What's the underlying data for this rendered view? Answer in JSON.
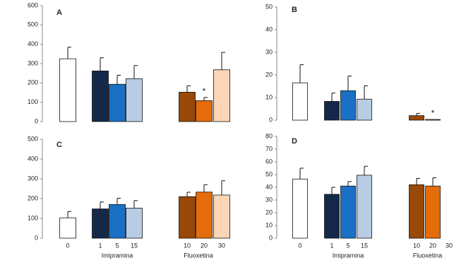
{
  "chart_data": [
    {
      "type": "bar",
      "label": "A",
      "categories": [
        null,
        null,
        null,
        null,
        null,
        null,
        null
      ],
      "values": [
        325,
        262,
        193,
        222,
        152,
        108,
        268
      ],
      "errors": [
        60,
        68,
        47,
        68,
        33,
        17,
        90
      ],
      "colors": [
        "#ffffff",
        "#14284a",
        "#1a70c4",
        "#b8cce4",
        "#984807",
        "#e46c0a",
        "#fbd5b5"
      ],
      "notes": [
        null,
        null,
        null,
        null,
        null,
        "*",
        null
      ],
      "ylim": [
        0,
        600
      ],
      "yticks": [
        0,
        100,
        200,
        300,
        400,
        500,
        600
      ]
    },
    {
      "type": "bar",
      "label": "B",
      "categories": [
        null,
        null,
        null,
        null,
        null,
        null,
        null
      ],
      "values": [
        16.5,
        8.3,
        13,
        9.3,
        2,
        0.3,
        null
      ],
      "errors": [
        8,
        3.7,
        6.5,
        5.9,
        1,
        null,
        null
      ],
      "colors": [
        "#ffffff",
        "#14284a",
        "#1a70c4",
        "#b8cce4",
        "#984807",
        "#e46c0a",
        "#fbd5b5"
      ],
      "notes": [
        null,
        null,
        null,
        null,
        null,
        "*",
        null
      ],
      "ylim": [
        0,
        50
      ],
      "yticks": [
        0,
        10,
        20,
        30,
        40,
        50
      ]
    },
    {
      "type": "bar",
      "label": "C",
      "categories": [
        "0",
        "1",
        "5",
        "15",
        "10",
        "20",
        "30"
      ],
      "group_labels": [
        "Imipramina",
        "Fluoxetina"
      ],
      "values": [
        103,
        148,
        170,
        152,
        210,
        233,
        218
      ],
      "errors": [
        32,
        35,
        32,
        38,
        22,
        37,
        72
      ],
      "colors": [
        "#ffffff",
        "#14284a",
        "#1a70c4",
        "#b8cce4",
        "#984807",
        "#e46c0a",
        "#fbd5b5"
      ],
      "ylim": [
        0,
        500
      ],
      "yticks": [
        0,
        100,
        200,
        300,
        400,
        500
      ]
    },
    {
      "type": "bar",
      "label": "D",
      "categories": [
        "0",
        "1",
        "5",
        "15",
        "10",
        "20",
        "30"
      ],
      "group_labels": [
        "Imipramina",
        "Fluoxetina"
      ],
      "values": [
        46.5,
        34.5,
        41,
        49.5,
        42,
        41,
        null
      ],
      "errors": [
        8.5,
        5.5,
        3.5,
        7,
        5,
        6.5,
        null
      ],
      "colors": [
        "#ffffff",
        "#14284a",
        "#1a70c4",
        "#b8cce4",
        "#984807",
        "#e46c0a",
        "#fbd5b5"
      ],
      "ylim": [
        0,
        80
      ],
      "yticks": [
        0,
        10,
        20,
        30,
        40,
        50,
        60,
        70,
        80
      ]
    }
  ]
}
